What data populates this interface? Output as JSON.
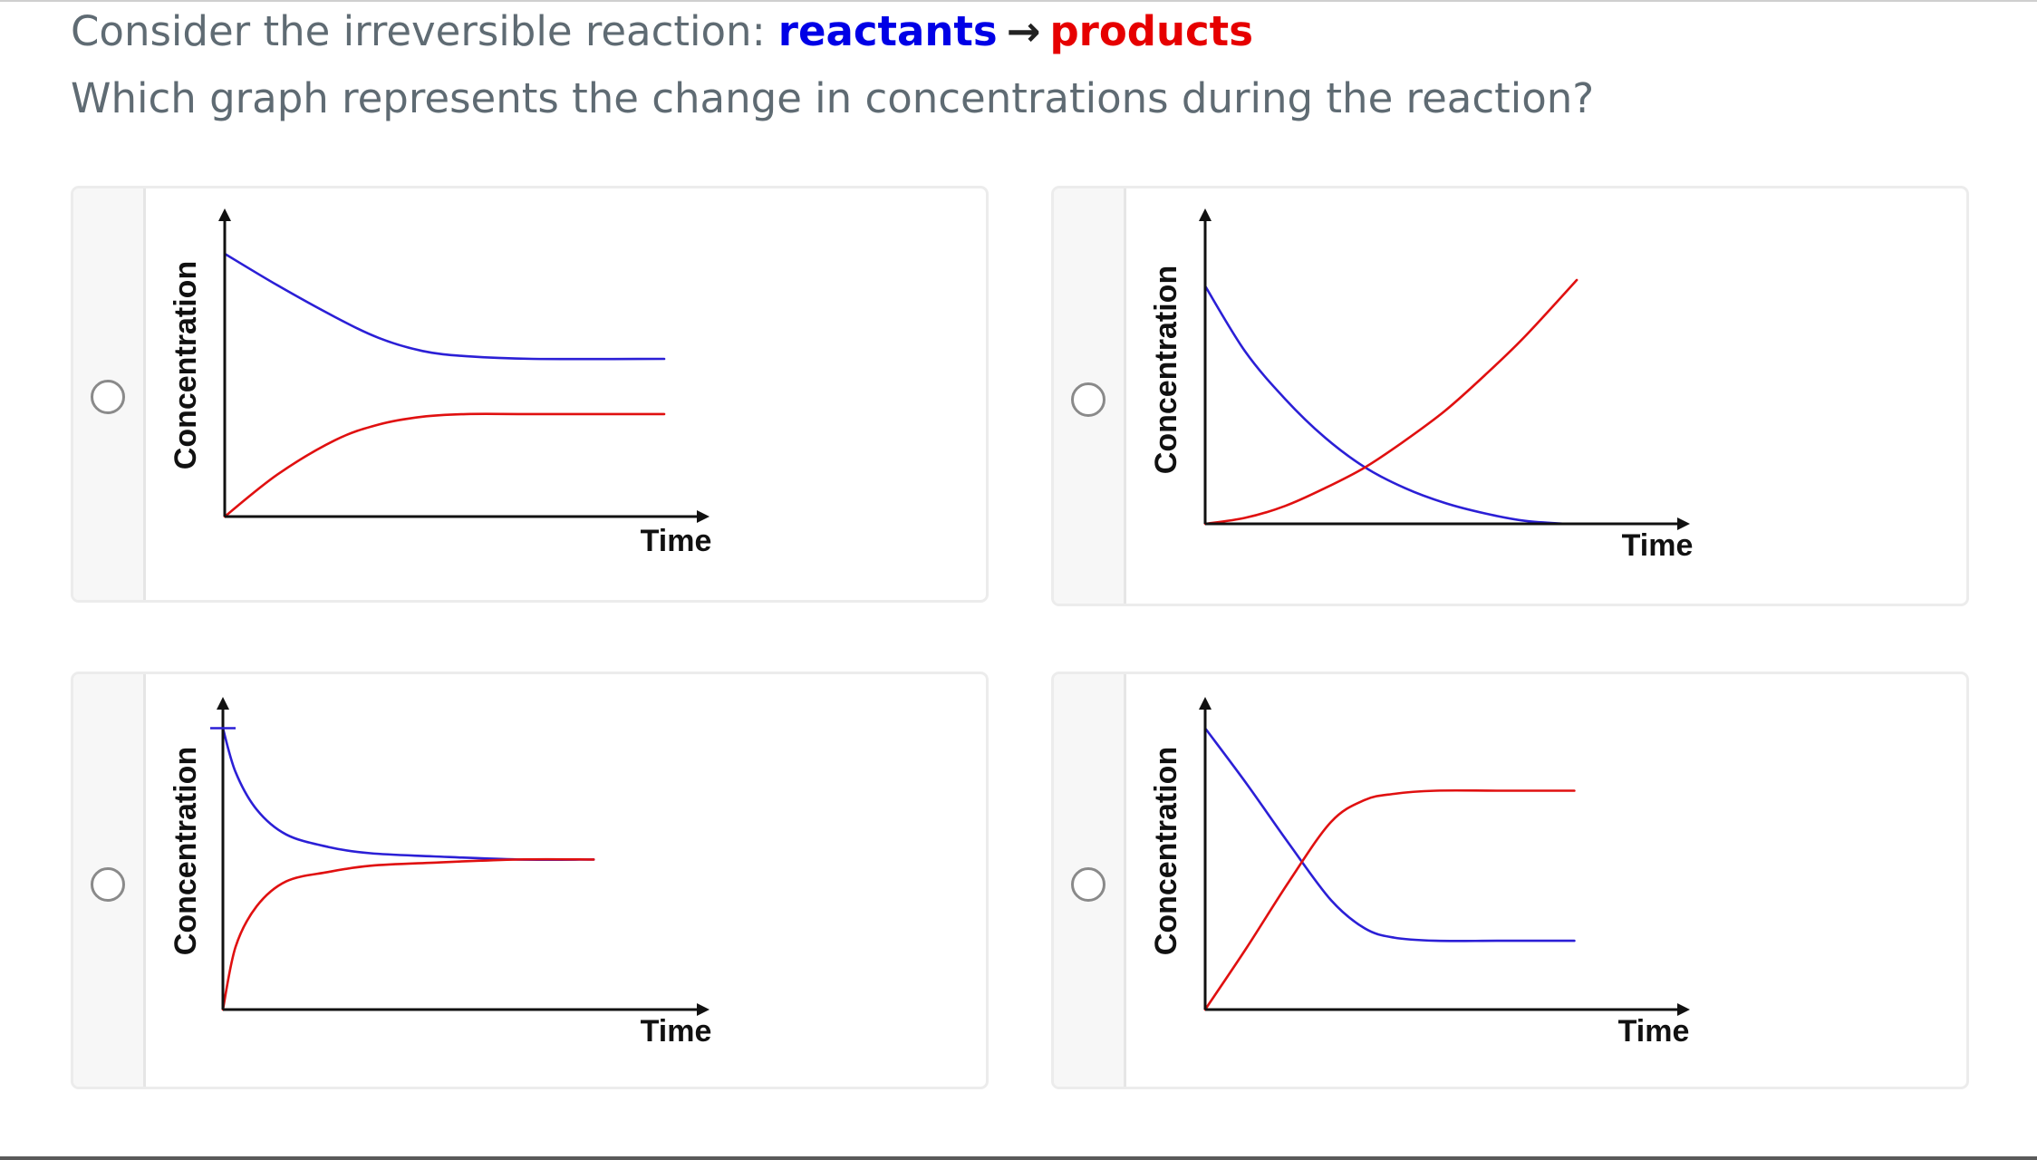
{
  "question": {
    "line1_prefix": "Consider the irreversible reaction:",
    "reactants": "reactants",
    "arrow": "→",
    "products": "products",
    "line2": "Which graph represents the change in concentrations during the reaction?"
  },
  "colors": {
    "reactant_line": "#2b1fd6",
    "product_line": "#e01010",
    "reactants_text": "#0000e6",
    "products_text": "#e60000",
    "question_text": "#5f6b73"
  },
  "icons": {
    "option_marker": "radio-circle-icon"
  },
  "options": [
    {
      "selected": false,
      "xlabel": "Time",
      "ylabel": "Concentration"
    },
    {
      "selected": false,
      "xlabel": "Time",
      "ylabel": "Concentration"
    },
    {
      "selected": false,
      "xlabel": "Time",
      "ylabel": "Concentration"
    },
    {
      "selected": false,
      "xlabel": "Time",
      "ylabel": "Concentration"
    }
  ],
  "chart_data": [
    {
      "type": "line",
      "xlabel": "Time",
      "ylabel": "Concentration",
      "xlim": [
        0,
        1
      ],
      "ylim": [
        0,
        1
      ],
      "grid": false,
      "series": [
        {
          "color": "#2b1fd6",
          "x": [
            0,
            0.12,
            0.25,
            0.35,
            0.45,
            0.55,
            0.7,
            1.0
          ],
          "y": [
            1.0,
            0.88,
            0.76,
            0.68,
            0.63,
            0.61,
            0.6,
            0.6
          ]
        },
        {
          "color": "#e01010",
          "x": [
            0,
            0.12,
            0.25,
            0.35,
            0.45,
            0.55,
            0.7,
            1.0
          ],
          "y": [
            0.0,
            0.16,
            0.29,
            0.35,
            0.38,
            0.39,
            0.39,
            0.39
          ]
        }
      ]
    },
    {
      "type": "line",
      "xlabel": "Time",
      "ylabel": "Concentration",
      "xlim": [
        0,
        1
      ],
      "ylim": [
        0,
        1
      ],
      "grid": false,
      "series": [
        {
          "color": "#2b1fd6",
          "x": [
            0,
            0.1,
            0.2,
            0.3,
            0.4,
            0.5,
            0.6,
            0.7,
            0.8,
            0.9
          ],
          "y": [
            0.8,
            0.58,
            0.42,
            0.29,
            0.19,
            0.12,
            0.07,
            0.035,
            0.01,
            0.0
          ]
        },
        {
          "color": "#e01010",
          "x": [
            0,
            0.1,
            0.2,
            0.3,
            0.4,
            0.5,
            0.6,
            0.7,
            0.8,
            0.93
          ],
          "y": [
            0.0,
            0.02,
            0.06,
            0.12,
            0.19,
            0.28,
            0.38,
            0.5,
            0.63,
            0.82
          ]
        }
      ]
    },
    {
      "type": "line",
      "xlabel": "Time",
      "ylabel": "Concentration",
      "xlim": [
        0,
        1
      ],
      "ylim": [
        0,
        1
      ],
      "grid": false,
      "series": [
        {
          "color": "#2b1fd6",
          "x": [
            0,
            0.03,
            0.08,
            0.15,
            0.25,
            0.35,
            0.5,
            0.7,
            0.88
          ],
          "y": [
            0.9,
            0.76,
            0.64,
            0.56,
            0.52,
            0.5,
            0.49,
            0.48,
            0.48
          ]
        },
        {
          "color": "#e01010",
          "x": [
            0,
            0.03,
            0.08,
            0.15,
            0.25,
            0.35,
            0.5,
            0.7,
            0.88
          ],
          "y": [
            0.0,
            0.2,
            0.33,
            0.41,
            0.44,
            0.46,
            0.47,
            0.48,
            0.48
          ]
        }
      ]
    },
    {
      "type": "line",
      "xlabel": "Time",
      "ylabel": "Concentration",
      "xlim": [
        0,
        1
      ],
      "ylim": [
        0,
        1
      ],
      "grid": false,
      "series": [
        {
          "color": "#2b1fd6",
          "x": [
            0,
            0.1,
            0.2,
            0.3,
            0.38,
            0.45,
            0.55,
            0.7,
            0.88
          ],
          "y": [
            0.9,
            0.72,
            0.53,
            0.35,
            0.26,
            0.23,
            0.22,
            0.22,
            0.22
          ]
        },
        {
          "color": "#e01010",
          "x": [
            0,
            0.1,
            0.2,
            0.3,
            0.38,
            0.45,
            0.55,
            0.7,
            0.88
          ],
          "y": [
            0.0,
            0.2,
            0.41,
            0.6,
            0.67,
            0.69,
            0.7,
            0.7,
            0.7
          ]
        }
      ]
    }
  ]
}
